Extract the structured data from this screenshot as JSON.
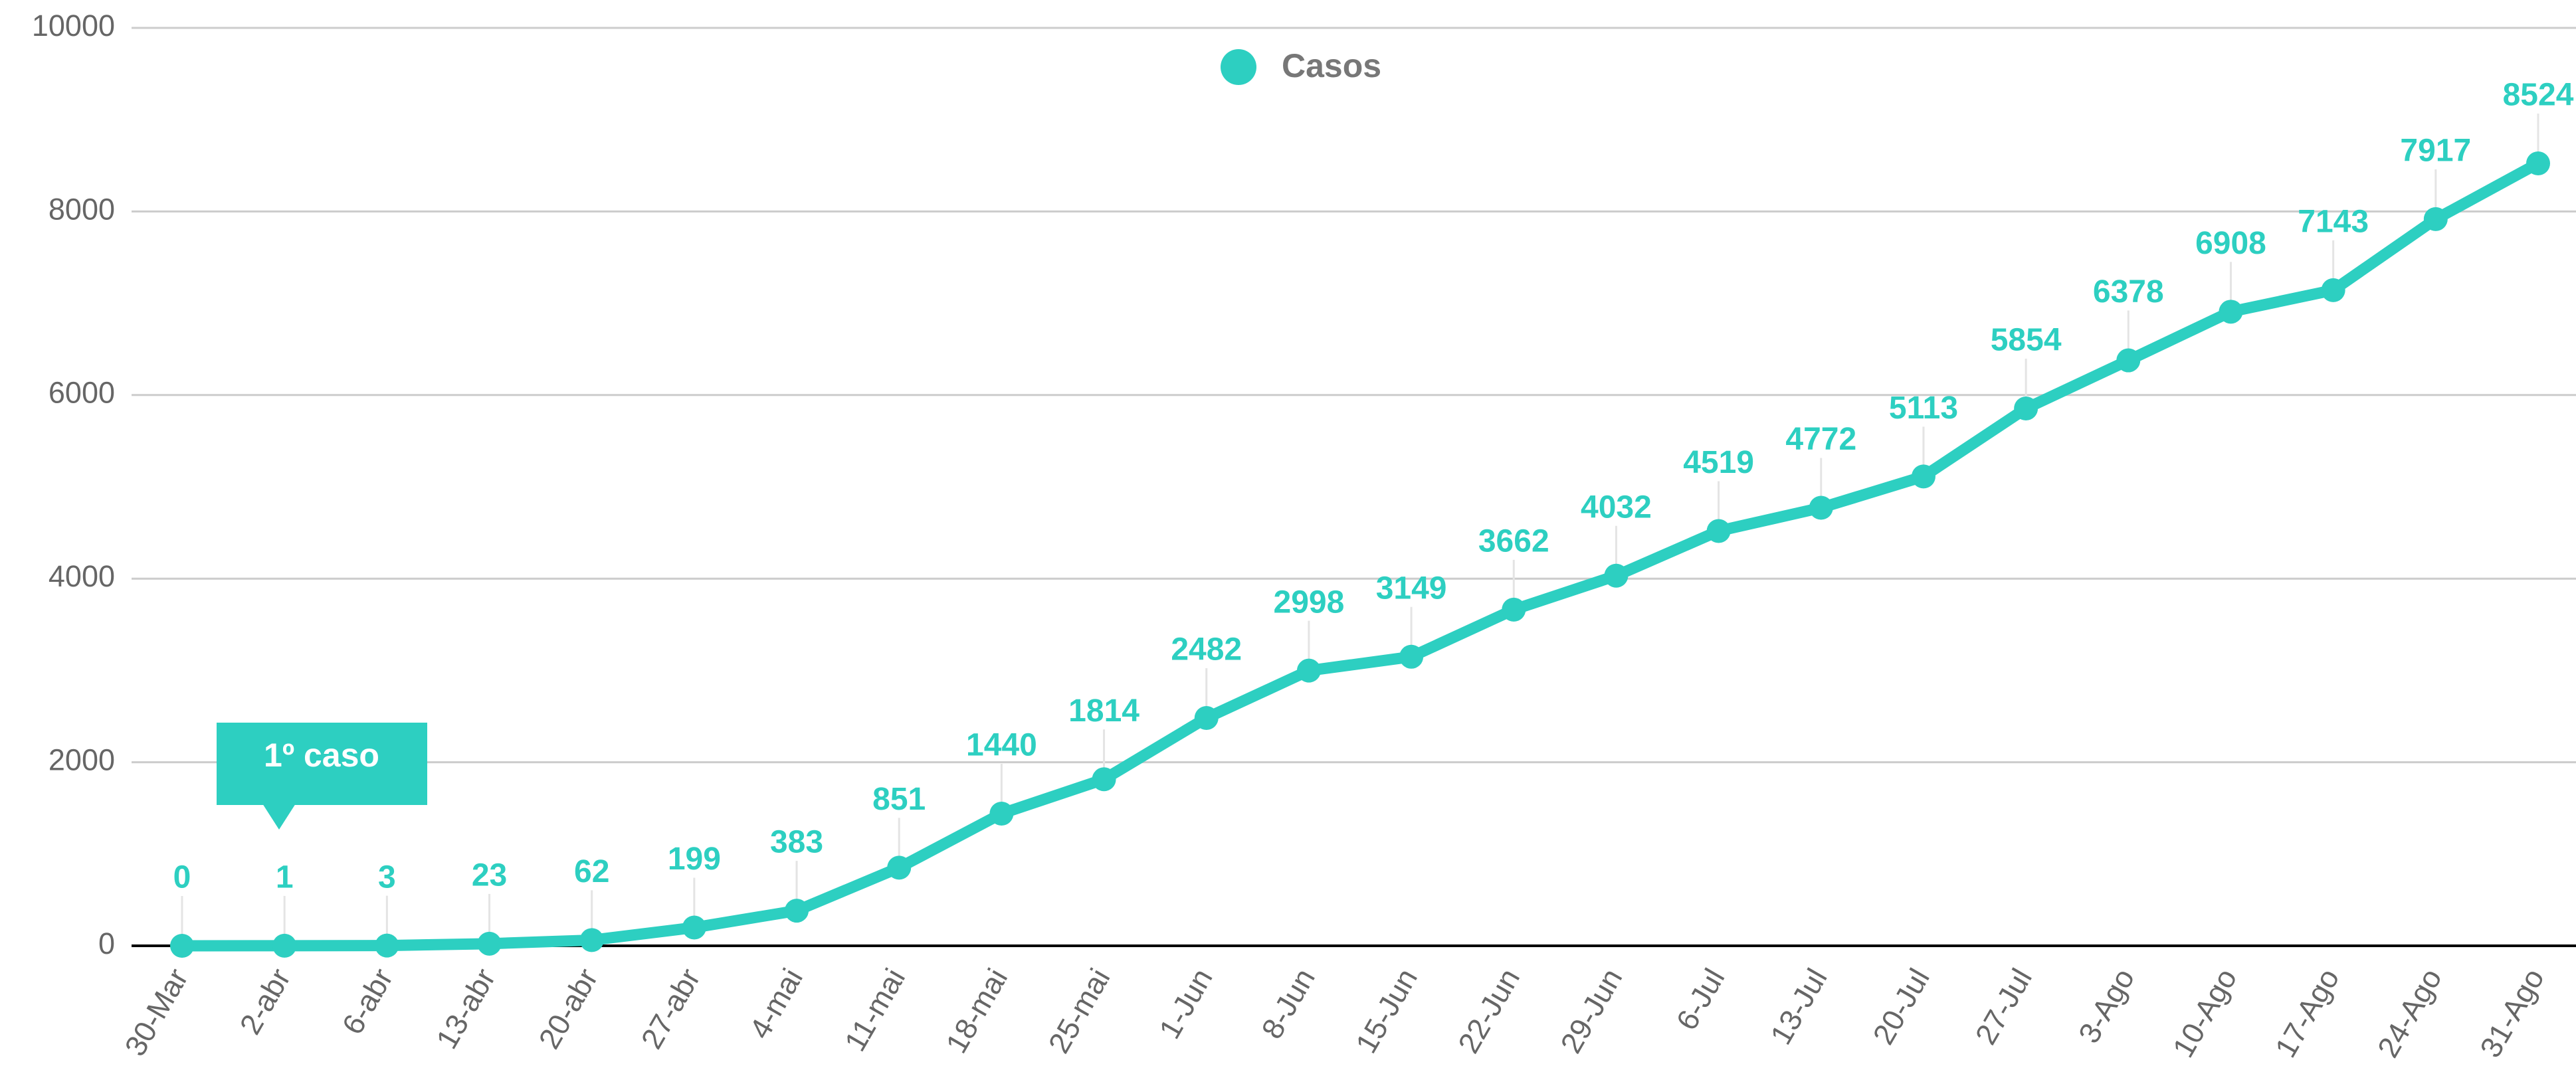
{
  "chart_data": {
    "type": "line",
    "categories": [
      "30-Mar",
      "2-abr",
      "6-abr",
      "13-abr",
      "20-abr",
      "27-abr",
      "4-mai",
      "11-mai",
      "18-mai",
      "25-mai",
      "1-Jun",
      "8-Jun",
      "15-Jun",
      "22-Jun",
      "29-Jun",
      "6-Jul",
      "13-Jul",
      "20-Jul",
      "27-Jul",
      "3-Ago",
      "10-Ago",
      "17-Ago",
      "24-Ago",
      "31-Ago"
    ],
    "series": [
      {
        "name": "Casos",
        "color": "#2dcfc1",
        "values": [
          0,
          1,
          3,
          23,
          62,
          199,
          383,
          851,
          1440,
          1814,
          2482,
          2998,
          3149,
          3662,
          4032,
          4519,
          4772,
          5113,
          5854,
          6378,
          6908,
          7143,
          7917,
          8524
        ]
      }
    ],
    "ylim": [
      0,
      10000
    ],
    "yticks": [
      0,
      2000,
      4000,
      6000,
      8000,
      10000
    ],
    "grid": true,
    "legend": "top",
    "annotations": [
      "1º caso"
    ]
  }
}
